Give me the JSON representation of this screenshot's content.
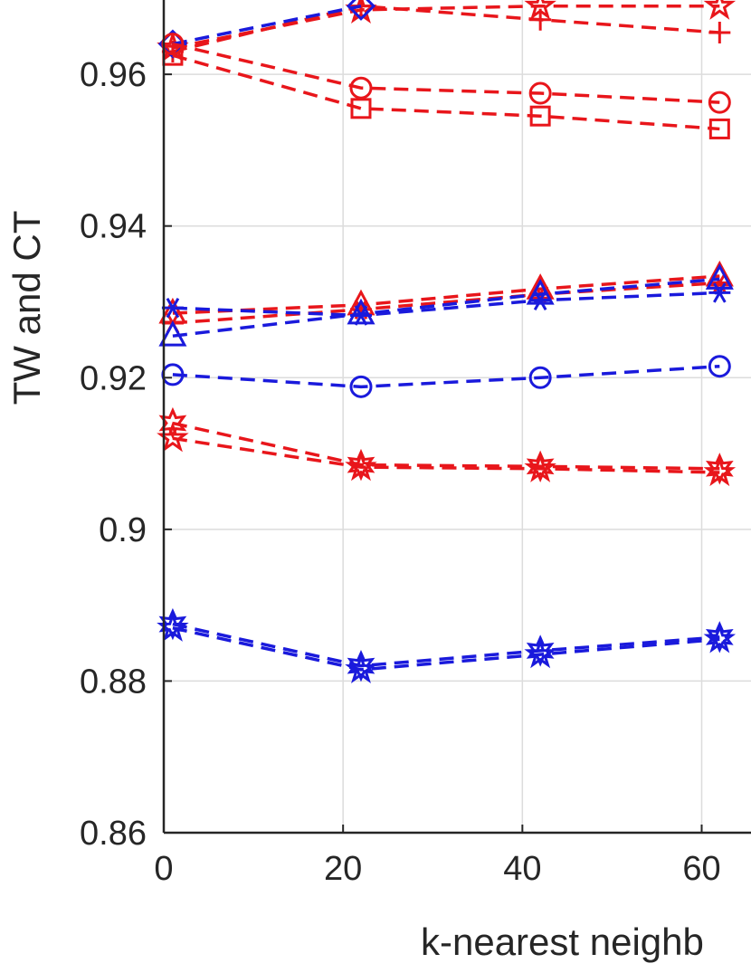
{
  "chart_data": {
    "type": "line",
    "title": "",
    "xlabel": "k-nearest neighb",
    "ylabel": "TW and CT",
    "xlim": [
      0,
      65.5
    ],
    "ylim": [
      0.86,
      0.9698
    ],
    "grid": true,
    "x_ticks": [
      0,
      20,
      40,
      60
    ],
    "x_tick_labels": [
      "0",
      "20",
      "40",
      "60"
    ],
    "y_ticks": [
      0.86,
      0.88,
      0.9,
      0.92,
      0.94,
      0.96
    ],
    "y_tick_labels": [
      "0.86",
      "0.88",
      "0.9",
      "0.92",
      "0.94",
      "0.96"
    ],
    "x": [
      1,
      22,
      42,
      62
    ],
    "colors": {
      "red": "#e8161b",
      "blue": "#1a1adc",
      "grid": "#dcdcdc",
      "axis": "#262626"
    },
    "series": [
      {
        "color": "red",
        "marker": "pentagram",
        "values": [
          0.9635,
          0.9685,
          0.969,
          0.969
        ]
      },
      {
        "color": "red",
        "marker": "plus",
        "values": [
          0.963,
          0.969,
          0.9672,
          0.9655
        ]
      },
      {
        "color": "blue",
        "marker": "diamond",
        "values": [
          0.964,
          0.969,
          null,
          null
        ]
      },
      {
        "color": "red",
        "marker": "circle",
        "values": [
          0.964,
          0.9582,
          0.9575,
          0.9563
        ]
      },
      {
        "color": "red",
        "marker": "square",
        "values": [
          0.9625,
          0.9555,
          0.9545,
          0.9528
        ]
      },
      {
        "color": "red",
        "marker": "triangle",
        "values": [
          0.9285,
          0.9296,
          0.9317,
          0.9334
        ]
      },
      {
        "color": "red",
        "marker": "asterisk",
        "values": [
          0.9272,
          0.929,
          0.931,
          0.9325
        ]
      },
      {
        "color": "blue",
        "marker": "asterisk",
        "values": [
          0.9292,
          0.9282,
          0.9302,
          0.9312
        ]
      },
      {
        "color": "blue",
        "marker": "triangle",
        "values": [
          0.9255,
          0.9284,
          0.931,
          0.933
        ]
      },
      {
        "color": "blue",
        "marker": "circle",
        "values": [
          0.9204,
          0.9188,
          0.92,
          0.9215
        ]
      },
      {
        "color": "red",
        "marker": "hexagram",
        "values": [
          0.914,
          0.9085,
          0.9083,
          0.908
        ]
      },
      {
        "color": "red",
        "marker": "pentagram",
        "values": [
          0.912,
          0.9082,
          0.908,
          0.9075
        ]
      },
      {
        "color": "blue",
        "marker": "hexagram",
        "values": [
          0.8875,
          0.882,
          0.884,
          0.8858
        ]
      },
      {
        "color": "blue",
        "marker": "pentagram",
        "values": [
          0.887,
          0.8815,
          0.8835,
          0.8855
        ]
      }
    ]
  }
}
